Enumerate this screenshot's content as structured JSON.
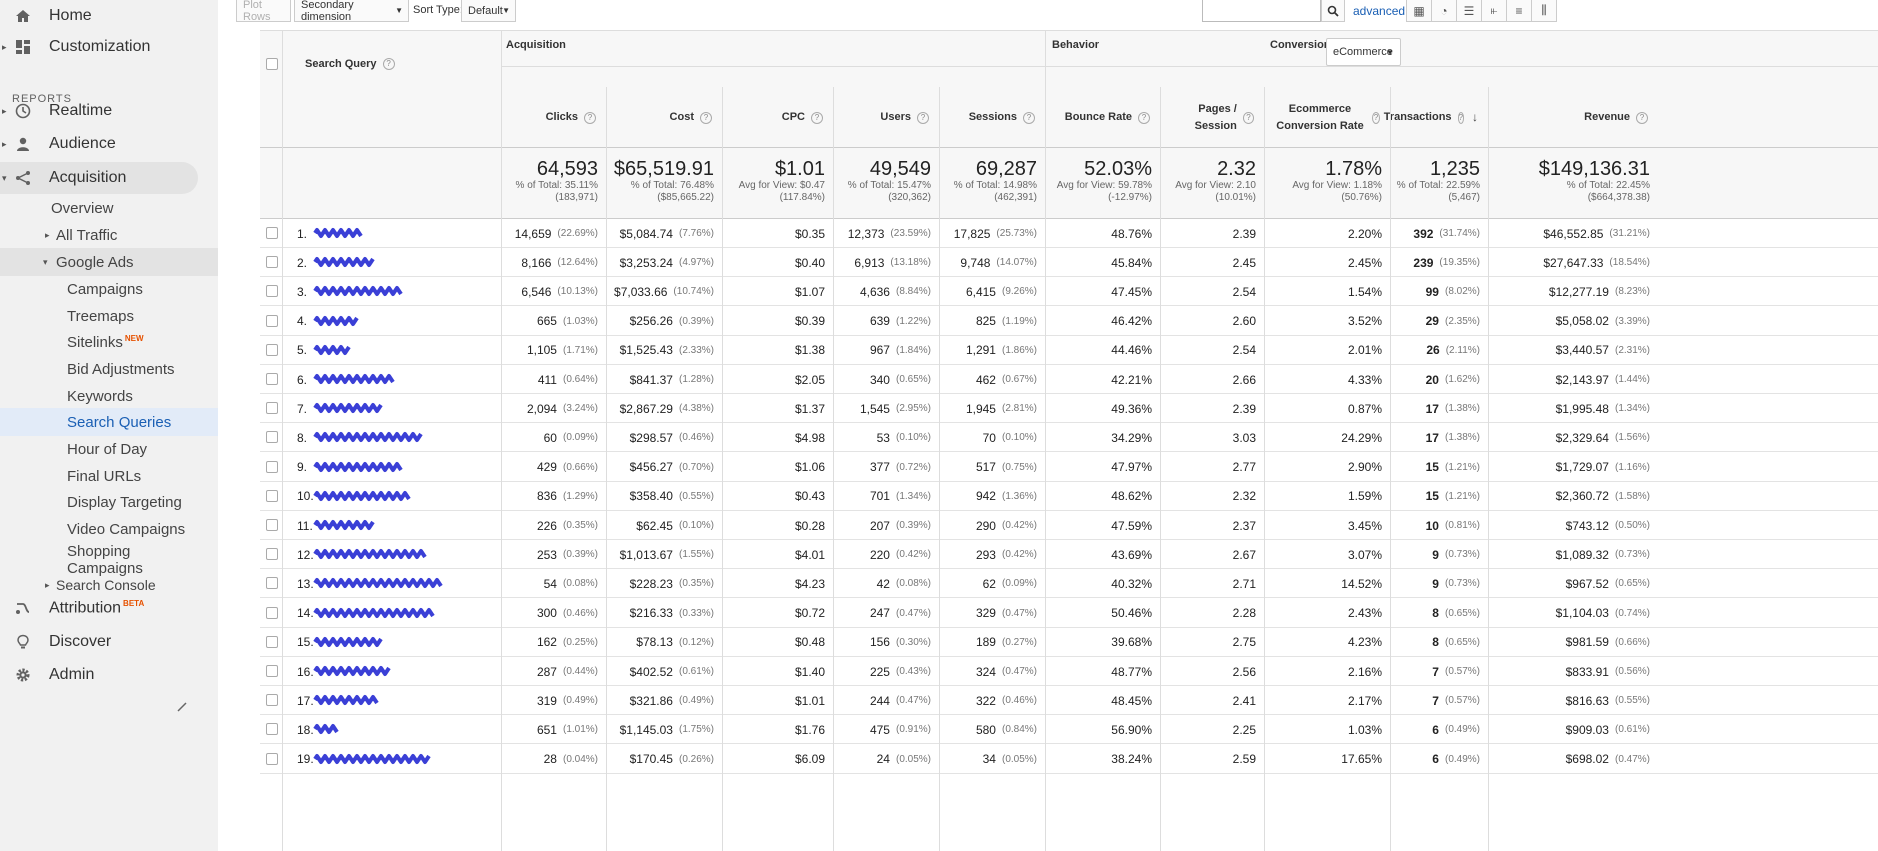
{
  "sidebar": {
    "home": "Home",
    "customization": "Customization",
    "reports_label": "REPORTS",
    "realtime": "Realtime",
    "audience": "Audience",
    "acquisition": "Acquisition",
    "overview": "Overview",
    "all_traffic": "All Traffic",
    "google_ads": "Google Ads",
    "ads_items": [
      "Campaigns",
      "Treemaps",
      "Sitelinks",
      "Bid Adjustments",
      "Keywords",
      "Search Queries",
      "Hour of Day",
      "Final URLs",
      "Display Targeting",
      "Video Campaigns",
      "Shopping Campaigns"
    ],
    "sitelinks_badge": "NEW",
    "search_console": "Search Console",
    "attribution": "Attribution",
    "attribution_badge": "BETA",
    "discover": "Discover",
    "admin": "Admin"
  },
  "toolbar": {
    "plot_rows": "Plot Rows",
    "secondary_dimension": "Secondary dimension",
    "sort_type_label": "Sort Type:",
    "sort_type_value": "Default",
    "search_value": "",
    "advanced": "advanced"
  },
  "table": {
    "dimension_header": "Search Query",
    "groups": {
      "acquisition": "Acquisition",
      "behavior": "Behavior",
      "conversions": "Conversions",
      "conversions_select": "eCommerce"
    },
    "columns": [
      "Clicks",
      "Cost",
      "CPC",
      "Users",
      "Sessions",
      "Bounce Rate",
      "Pages / Session",
      "Ecommerce Conversion Rate",
      "Transactions",
      "Revenue"
    ],
    "totals": [
      {
        "big": "64,593",
        "l1": "% of Total: 35.11%",
        "l2": "(183,971)"
      },
      {
        "big": "$65,519.91",
        "l1": "% of Total: 76.48%",
        "l2": "($85,665.22)"
      },
      {
        "big": "$1.01",
        "l1": "Avg for View: $0.47",
        "l2": "(117.84%)"
      },
      {
        "big": "49,549",
        "l1": "% of Total: 15.47%",
        "l2": "(320,362)"
      },
      {
        "big": "69,287",
        "l1": "% of Total: 14.98%",
        "l2": "(462,391)"
      },
      {
        "big": "52.03%",
        "l1": "Avg for View: 59.78%",
        "l2": "(-12.97%)"
      },
      {
        "big": "2.32",
        "l1": "Avg for View: 2.10",
        "l2": "(10.01%)"
      },
      {
        "big": "1.78%",
        "l1": "Avg for View: 1.18%",
        "l2": "(50.76%)"
      },
      {
        "big": "1,235",
        "l1": "% of Total: 22.59%",
        "l2": "(5,467)"
      },
      {
        "big": "$149,136.31",
        "l1": "% of Total: 22.45%",
        "l2": "($664,378.38)"
      }
    ],
    "rows": [
      {
        "n": "1.",
        "clicks": "14,659",
        "clicks_p": "(22.69%)",
        "cost": "$5,084.74",
        "cost_p": "(7.76%)",
        "cpc": "$0.35",
        "users": "12,373",
        "users_p": "(23.59%)",
        "sessions": "17,825",
        "sessions_p": "(25.73%)",
        "bounce": "48.76%",
        "pps": "2.39",
        "ecr": "2.20%",
        "trans": "392",
        "trans_p": "(31.74%)",
        "rev": "$46,552.85",
        "rev_p": "(31.21%)"
      },
      {
        "n": "2.",
        "clicks": "8,166",
        "clicks_p": "(12.64%)",
        "cost": "$3,253.24",
        "cost_p": "(4.97%)",
        "cpc": "$0.40",
        "users": "6,913",
        "users_p": "(13.18%)",
        "sessions": "9,748",
        "sessions_p": "(14.07%)",
        "bounce": "45.84%",
        "pps": "2.45",
        "ecr": "2.45%",
        "trans": "239",
        "trans_p": "(19.35%)",
        "rev": "$27,647.33",
        "rev_p": "(18.54%)"
      },
      {
        "n": "3.",
        "clicks": "6,546",
        "clicks_p": "(10.13%)",
        "cost": "$7,033.66",
        "cost_p": "(10.74%)",
        "cpc": "$1.07",
        "users": "4,636",
        "users_p": "(8.84%)",
        "sessions": "6,415",
        "sessions_p": "(9.26%)",
        "bounce": "47.45%",
        "pps": "2.54",
        "ecr": "1.54%",
        "trans": "99",
        "trans_p": "(8.02%)",
        "rev": "$12,277.19",
        "rev_p": "(8.23%)"
      },
      {
        "n": "4.",
        "clicks": "665",
        "clicks_p": "(1.03%)",
        "cost": "$256.26",
        "cost_p": "(0.39%)",
        "cpc": "$0.39",
        "users": "639",
        "users_p": "(1.22%)",
        "sessions": "825",
        "sessions_p": "(1.19%)",
        "bounce": "46.42%",
        "pps": "2.60",
        "ecr": "3.52%",
        "trans": "29",
        "trans_p": "(2.35%)",
        "rev": "$5,058.02",
        "rev_p": "(3.39%)"
      },
      {
        "n": "5.",
        "clicks": "1,105",
        "clicks_p": "(1.71%)",
        "cost": "$1,525.43",
        "cost_p": "(2.33%)",
        "cpc": "$1.38",
        "users": "967",
        "users_p": "(1.84%)",
        "sessions": "1,291",
        "sessions_p": "(1.86%)",
        "bounce": "44.46%",
        "pps": "2.54",
        "ecr": "2.01%",
        "trans": "26",
        "trans_p": "(2.11%)",
        "rev": "$3,440.57",
        "rev_p": "(2.31%)"
      },
      {
        "n": "6.",
        "clicks": "411",
        "clicks_p": "(0.64%)",
        "cost": "$841.37",
        "cost_p": "(1.28%)",
        "cpc": "$2.05",
        "users": "340",
        "users_p": "(0.65%)",
        "sessions": "462",
        "sessions_p": "(0.67%)",
        "bounce": "42.21%",
        "pps": "2.66",
        "ecr": "4.33%",
        "trans": "20",
        "trans_p": "(1.62%)",
        "rev": "$2,143.97",
        "rev_p": "(1.44%)"
      },
      {
        "n": "7.",
        "clicks": "2,094",
        "clicks_p": "(3.24%)",
        "cost": "$2,867.29",
        "cost_p": "(4.38%)",
        "cpc": "$1.37",
        "users": "1,545",
        "users_p": "(2.95%)",
        "sessions": "1,945",
        "sessions_p": "(2.81%)",
        "bounce": "49.36%",
        "pps": "2.39",
        "ecr": "0.87%",
        "trans": "17",
        "trans_p": "(1.38%)",
        "rev": "$1,995.48",
        "rev_p": "(1.34%)"
      },
      {
        "n": "8.",
        "clicks": "60",
        "clicks_p": "(0.09%)",
        "cost": "$298.57",
        "cost_p": "(0.46%)",
        "cpc": "$4.98",
        "users": "53",
        "users_p": "(0.10%)",
        "sessions": "70",
        "sessions_p": "(0.10%)",
        "bounce": "34.29%",
        "pps": "3.03",
        "ecr": "24.29%",
        "trans": "17",
        "trans_p": "(1.38%)",
        "rev": "$2,329.64",
        "rev_p": "(1.56%)"
      },
      {
        "n": "9.",
        "clicks": "429",
        "clicks_p": "(0.66%)",
        "cost": "$456.27",
        "cost_p": "(0.70%)",
        "cpc": "$1.06",
        "users": "377",
        "users_p": "(0.72%)",
        "sessions": "517",
        "sessions_p": "(0.75%)",
        "bounce": "47.97%",
        "pps": "2.77",
        "ecr": "2.90%",
        "trans": "15",
        "trans_p": "(1.21%)",
        "rev": "$1,729.07",
        "rev_p": "(1.16%)"
      },
      {
        "n": "10.",
        "clicks": "836",
        "clicks_p": "(1.29%)",
        "cost": "$358.40",
        "cost_p": "(0.55%)",
        "cpc": "$0.43",
        "users": "701",
        "users_p": "(1.34%)",
        "sessions": "942",
        "sessions_p": "(1.36%)",
        "bounce": "48.62%",
        "pps": "2.32",
        "ecr": "1.59%",
        "trans": "15",
        "trans_p": "(1.21%)",
        "rev": "$2,360.72",
        "rev_p": "(1.58%)"
      },
      {
        "n": "11.",
        "clicks": "226",
        "clicks_p": "(0.35%)",
        "cost": "$62.45",
        "cost_p": "(0.10%)",
        "cpc": "$0.28",
        "users": "207",
        "users_p": "(0.39%)",
        "sessions": "290",
        "sessions_p": "(0.42%)",
        "bounce": "47.59%",
        "pps": "2.37",
        "ecr": "3.45%",
        "trans": "10",
        "trans_p": "(0.81%)",
        "rev": "$743.12",
        "rev_p": "(0.50%)"
      },
      {
        "n": "12.",
        "clicks": "253",
        "clicks_p": "(0.39%)",
        "cost": "$1,013.67",
        "cost_p": "(1.55%)",
        "cpc": "$4.01",
        "users": "220",
        "users_p": "(0.42%)",
        "sessions": "293",
        "sessions_p": "(0.42%)",
        "bounce": "43.69%",
        "pps": "2.67",
        "ecr": "3.07%",
        "trans": "9",
        "trans_p": "(0.73%)",
        "rev": "$1,089.32",
        "rev_p": "(0.73%)"
      },
      {
        "n": "13.",
        "clicks": "54",
        "clicks_p": "(0.08%)",
        "cost": "$228.23",
        "cost_p": "(0.35%)",
        "cpc": "$4.23",
        "users": "42",
        "users_p": "(0.08%)",
        "sessions": "62",
        "sessions_p": "(0.09%)",
        "bounce": "40.32%",
        "pps": "2.71",
        "ecr": "14.52%",
        "trans": "9",
        "trans_p": "(0.73%)",
        "rev": "$967.52",
        "rev_p": "(0.65%)"
      },
      {
        "n": "14.",
        "clicks": "300",
        "clicks_p": "(0.46%)",
        "cost": "$216.33",
        "cost_p": "(0.33%)",
        "cpc": "$0.72",
        "users": "247",
        "users_p": "(0.47%)",
        "sessions": "329",
        "sessions_p": "(0.47%)",
        "bounce": "50.46%",
        "pps": "2.28",
        "ecr": "2.43%",
        "trans": "8",
        "trans_p": "(0.65%)",
        "rev": "$1,104.03",
        "rev_p": "(0.74%)"
      },
      {
        "n": "15.",
        "clicks": "162",
        "clicks_p": "(0.25%)",
        "cost": "$78.13",
        "cost_p": "(0.12%)",
        "cpc": "$0.48",
        "users": "156",
        "users_p": "(0.30%)",
        "sessions": "189",
        "sessions_p": "(0.27%)",
        "bounce": "39.68%",
        "pps": "2.75",
        "ecr": "4.23%",
        "trans": "8",
        "trans_p": "(0.65%)",
        "rev": "$981.59",
        "rev_p": "(0.66%)"
      },
      {
        "n": "16.",
        "clicks": "287",
        "clicks_p": "(0.44%)",
        "cost": "$402.52",
        "cost_p": "(0.61%)",
        "cpc": "$1.40",
        "users": "225",
        "users_p": "(0.43%)",
        "sessions": "324",
        "sessions_p": "(0.47%)",
        "bounce": "48.77%",
        "pps": "2.56",
        "ecr": "2.16%",
        "trans": "7",
        "trans_p": "(0.57%)",
        "rev": "$833.91",
        "rev_p": "(0.56%)"
      },
      {
        "n": "17.",
        "clicks": "319",
        "clicks_p": "(0.49%)",
        "cost": "$321.86",
        "cost_p": "(0.49%)",
        "cpc": "$1.01",
        "users": "244",
        "users_p": "(0.47%)",
        "sessions": "322",
        "sessions_p": "(0.46%)",
        "bounce": "48.45%",
        "pps": "2.41",
        "ecr": "2.17%",
        "trans": "7",
        "trans_p": "(0.57%)",
        "rev": "$816.63",
        "rev_p": "(0.55%)"
      },
      {
        "n": "18.",
        "clicks": "651",
        "clicks_p": "(1.01%)",
        "cost": "$1,145.03",
        "cost_p": "(1.75%)",
        "cpc": "$1.76",
        "users": "475",
        "users_p": "(0.91%)",
        "sessions": "580",
        "sessions_p": "(0.84%)",
        "bounce": "56.90%",
        "pps": "2.25",
        "ecr": "1.03%",
        "trans": "6",
        "trans_p": "(0.49%)",
        "rev": "$909.03",
        "rev_p": "(0.61%)"
      },
      {
        "n": "19.",
        "clicks": "28",
        "clicks_p": "(0.04%)",
        "cost": "$170.45",
        "cost_p": "(0.26%)",
        "cpc": "$6.09",
        "users": "24",
        "users_p": "(0.05%)",
        "sessions": "34",
        "sessions_p": "(0.05%)",
        "bounce": "38.24%",
        "pps": "2.59",
        "ecr": "17.65%",
        "trans": "6",
        "trans_p": "(0.49%)",
        "rev": "$698.02",
        "rev_p": "(0.47%)"
      }
    ]
  },
  "colors": {
    "redaction": "#3a3fd6",
    "accent": "#1a5fb4",
    "badge": "#e65100"
  }
}
